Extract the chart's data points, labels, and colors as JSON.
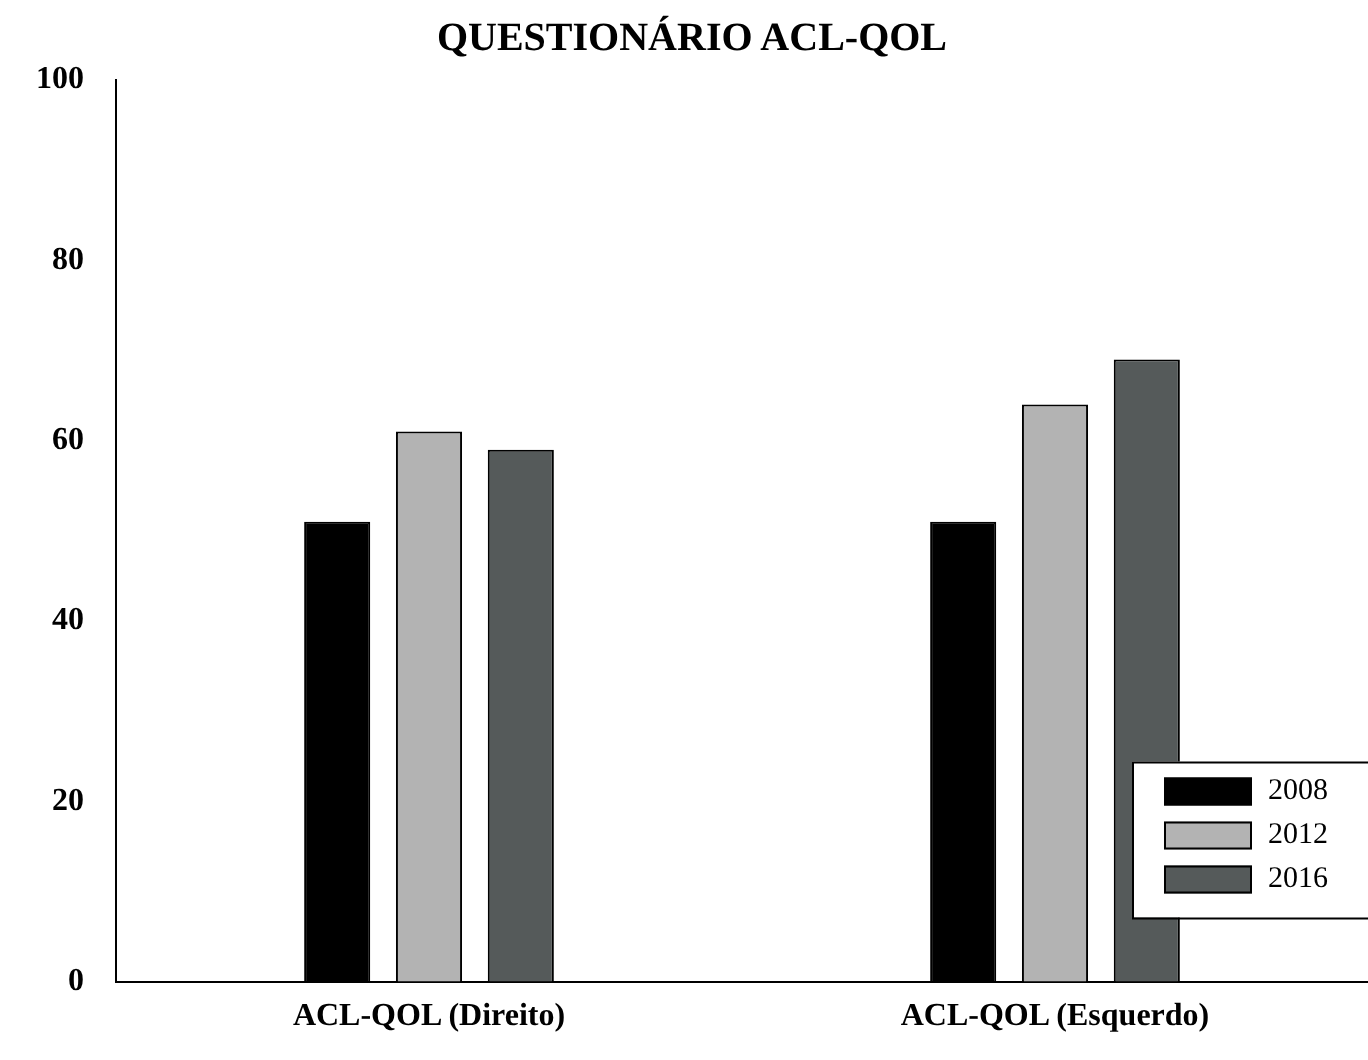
{
  "chart_data": {
    "type": "bar",
    "title": "QUESTIONÁRIO ACL-QOL",
    "categories": [
      "ACL-QOL (Direito)",
      "ACL-QOL (Esquerdo)"
    ],
    "series": [
      {
        "name": "2008",
        "color": "#000000",
        "values": [
          51,
          51
        ]
      },
      {
        "name": "2012",
        "color": "#b3b3b3",
        "values": [
          61,
          64
        ]
      },
      {
        "name": "2016",
        "color": "#555a5a",
        "values": [
          59,
          69
        ]
      }
    ],
    "ylim": [
      0,
      100
    ],
    "yticks": [
      0,
      20,
      40,
      60,
      80,
      100
    ],
    "grid": false,
    "legend": "bottom right"
  }
}
